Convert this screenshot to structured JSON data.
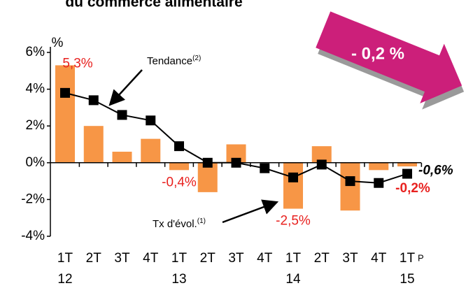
{
  "chart_data": {
    "type": "bar-line",
    "title": "du commerce alimentaire",
    "unit_label": "%",
    "categories": [
      "1T",
      "2T",
      "3T",
      "4T",
      "1T",
      "2T",
      "3T",
      "4T",
      "1T",
      "2T",
      "3T",
      "4T",
      "1T"
    ],
    "year_labels": [
      "12",
      null,
      null,
      null,
      "13",
      null,
      null,
      null,
      "14",
      null,
      null,
      null,
      "15"
    ],
    "provisional_mark": "P",
    "ylim": [
      -4,
      6
    ],
    "yticks": [
      {
        "value": -4,
        "label": "-4%"
      },
      {
        "value": -2,
        "label": "-2%"
      },
      {
        "value": 0,
        "label": "0%"
      },
      {
        "value": 2,
        "label": "2%"
      },
      {
        "value": 4,
        "label": "4%"
      },
      {
        "value": 6,
        "label": "6%"
      }
    ],
    "series": [
      {
        "name": "Tx d'évol.",
        "note": "(1)",
        "kind": "bar",
        "color": "#f79646",
        "values": [
          5.3,
          2.0,
          0.6,
          1.3,
          -0.4,
          -1.6,
          1.0,
          0.0,
          -2.5,
          0.9,
          -2.6,
          -0.4,
          -0.2
        ],
        "value_labels": [
          "5,3%",
          null,
          null,
          null,
          "-0,4%",
          null,
          null,
          null,
          "-2,5%",
          null,
          null,
          null,
          "-0,2%"
        ]
      },
      {
        "name": "Tendance",
        "note": "(2)",
        "kind": "line",
        "color": "#000000",
        "values": [
          3.8,
          3.4,
          2.6,
          2.3,
          0.9,
          0.0,
          0.0,
          -0.3,
          -0.8,
          -0.1,
          -1.0,
          -1.1,
          -0.6
        ],
        "value_labels": [
          null,
          null,
          null,
          null,
          null,
          null,
          null,
          null,
          null,
          null,
          null,
          null,
          "-0,6%"
        ]
      }
    ],
    "callout": "- 0,2 %"
  }
}
